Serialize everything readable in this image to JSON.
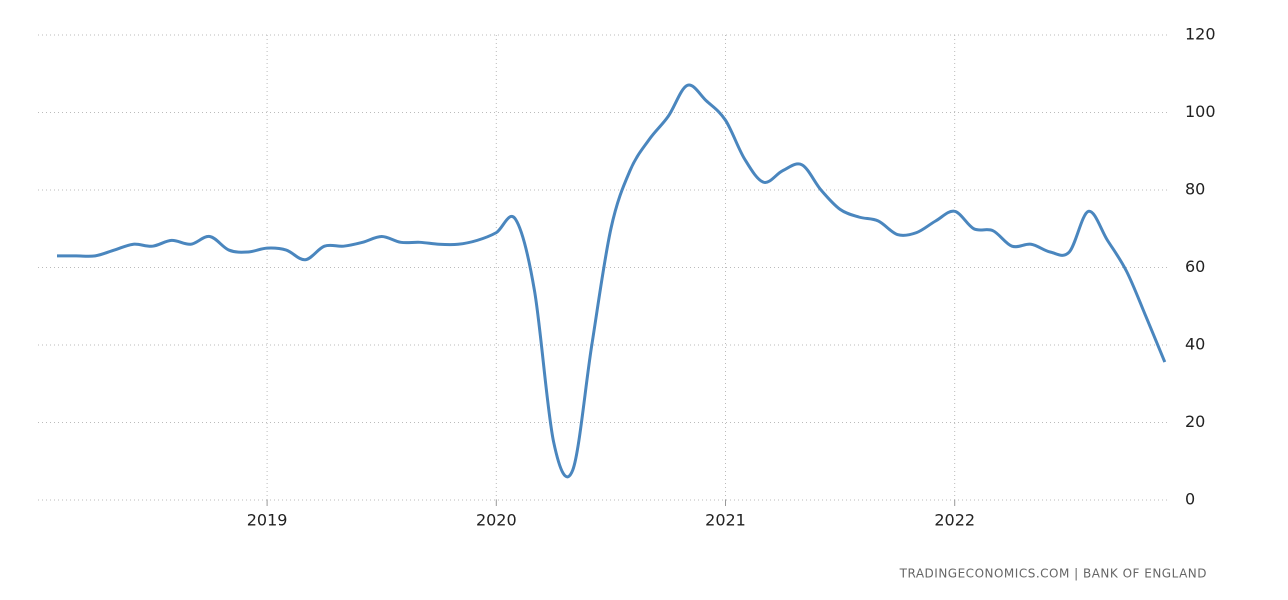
{
  "chart_data": {
    "type": "line",
    "source": "TRADINGECONOMICS.COM | BANK OF ENGLAND",
    "categories": [
      null,
      null,
      null,
      null,
      null,
      null,
      null,
      null,
      null,
      null,
      null,
      "2019",
      null,
      null,
      null,
      null,
      null,
      null,
      null,
      null,
      null,
      null,
      null,
      "2020",
      null,
      null,
      null,
      null,
      null,
      null,
      null,
      null,
      null,
      null,
      null,
      "2021",
      null,
      null,
      null,
      null,
      null,
      null,
      null,
      null,
      null,
      null,
      null,
      "2022",
      null,
      null,
      null,
      null,
      null,
      null,
      null,
      null,
      null,
      null,
      null
    ],
    "series": [
      {
        "color": "#4a86be",
        "values": [
          63,
          63,
          63,
          64.5,
          66,
          65.5,
          67,
          66,
          68,
          64.5,
          64,
          65,
          64.5,
          62,
          65.5,
          65.5,
          66.5,
          68,
          66.5,
          66.5,
          66,
          66,
          67,
          69,
          72.5,
          54,
          15,
          7.7,
          40,
          70,
          85,
          93,
          99,
          107,
          103,
          98,
          88,
          82,
          85,
          86.5,
          80,
          75,
          73,
          72,
          68.5,
          69,
          72,
          74.5,
          70,
          69.5,
          65.5,
          66,
          64,
          64,
          74.5,
          67,
          59,
          47.5,
          35.6
        ]
      }
    ],
    "ylim": [
      0,
      120
    ],
    "yticks": [
      0,
      20,
      40,
      60,
      80,
      100,
      120
    ],
    "grid": true
  }
}
